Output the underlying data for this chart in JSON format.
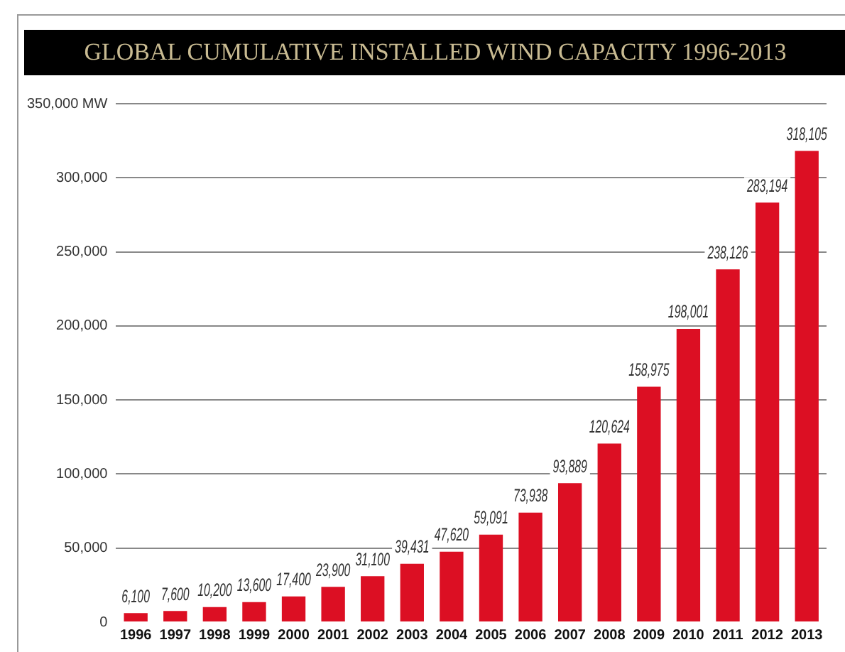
{
  "chart_data": {
    "type": "bar",
    "title": "GLOBAL CUMULATIVE INSTALLED WIND CAPACITY 1996-2013",
    "categories": [
      "1996",
      "1997",
      "1998",
      "1999",
      "2000",
      "2001",
      "2002",
      "2003",
      "2004",
      "2005",
      "2006",
      "2007",
      "2008",
      "2009",
      "2010",
      "2011",
      "2012",
      "2013"
    ],
    "values": [
      6100,
      7600,
      10200,
      13600,
      17400,
      23900,
      31100,
      39431,
      47620,
      59091,
      73938,
      93889,
      120624,
      158975,
      198001,
      238126,
      283194,
      318105
    ],
    "value_labels": [
      "6,100",
      "7,600",
      "10,200",
      "13,600",
      "17,400",
      "23,900",
      "31,100",
      "39,431",
      "47,620",
      "59,091",
      "73,938",
      "93,889",
      "120,624",
      "158,975",
      "198,001",
      "238,126",
      "283,194",
      "318,105"
    ],
    "color": "#dc0f23",
    "ylim": [
      0,
      350000
    ],
    "yticks": [
      {
        "value": 0,
        "label": "0"
      },
      {
        "value": 50000,
        "label": "50,000"
      },
      {
        "value": 100000,
        "label": "100,000"
      },
      {
        "value": 150000,
        "label": "150,000"
      },
      {
        "value": 200000,
        "label": "200,000"
      },
      {
        "value": 250000,
        "label": "250,000"
      },
      {
        "value": 300000,
        "label": "300,000"
      },
      {
        "value": 350000,
        "label": "350,000 MW"
      }
    ],
    "grid": "y",
    "legend": false
  }
}
